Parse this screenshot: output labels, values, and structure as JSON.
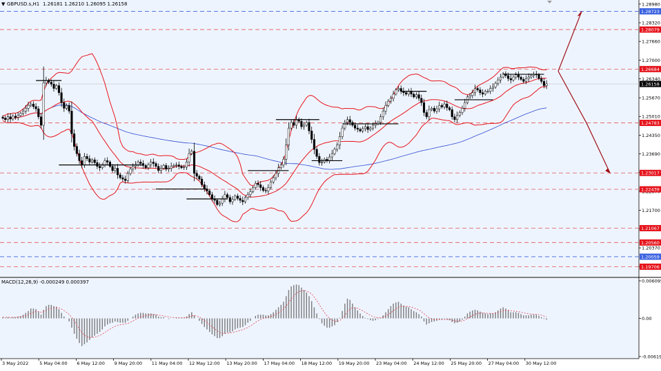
{
  "header": {
    "marker": "▼",
    "symbol": "GBPUSD.s,H1",
    "ohlc": "1.26181 1.26210 1.26095 1.26158"
  },
  "colors": {
    "background": "#eef4fe",
    "candle": "#000000",
    "bands": "#e8141a",
    "ma": "#2f4bd1",
    "level_line": "#e05555",
    "level_tag": "#e5121a",
    "price_tag": "#000000",
    "blue_line": "#3a62e0",
    "arrow": "#a01018",
    "macd_signal": "#e0404a",
    "macd_hist": "#7a7a7a"
  },
  "chart_data": [
    {
      "type": "candlestick",
      "title": "GBPUSD.s,H1",
      "ohlc": {
        "open": 1.26181,
        "high": 1.2621,
        "low": 1.26095,
        "close": 1.26158
      },
      "y_ticks": [
        "1.28980",
        "1.28320",
        "1.27660",
        "1.27000",
        "1.26340",
        "1.25670",
        "1.25010",
        "1.24350",
        "1.23690",
        "1.23030",
        "1.22370",
        "1.21700",
        "1.21040",
        "1.20370",
        "1.19710"
      ],
      "ylim": [
        1.1945,
        1.2905
      ],
      "x_ticks": [
        "3 May 2022",
        "5 May 04:00",
        "6 May 12:00",
        "9 May 20:00",
        "11 May 04:00",
        "12 May 12:00",
        "13 May 20:00",
        "17 May 04:00",
        "18 May 12:00",
        "19 May 20:00",
        "23 May 04:00",
        "24 May 12:00",
        "25 May 20:00",
        "27 May 04:00",
        "30 May 12:00"
      ],
      "indicators": [
        "Bollinger Bands",
        "Moving Average"
      ],
      "closes": [
        1.2495,
        1.249,
        1.25,
        1.2492,
        1.2502,
        1.2498,
        1.2505,
        1.2512,
        1.252,
        1.253,
        1.254,
        1.2545,
        1.2536,
        1.2528,
        1.25,
        1.247,
        1.262,
        1.2628,
        1.2622,
        1.2615,
        1.26,
        1.261,
        1.2585,
        1.255,
        1.253,
        1.254,
        1.252,
        1.244,
        1.2395,
        1.237,
        1.2345,
        1.233,
        1.236,
        1.2352,
        1.234,
        1.2348,
        1.2338,
        1.2325,
        1.232,
        1.233,
        1.2345,
        1.234,
        1.2325,
        1.231,
        1.2318,
        1.2295,
        1.2285,
        1.228,
        1.2275,
        1.23,
        1.2315,
        1.2325,
        1.233,
        1.234,
        1.2335,
        1.2328,
        1.232,
        1.233,
        1.234,
        1.2335,
        1.2325,
        1.231,
        1.2318,
        1.2328,
        1.2315,
        1.2318,
        1.2325,
        1.2328,
        1.233,
        1.2325,
        1.232,
        1.2322,
        1.234,
        1.237,
        1.2378,
        1.23,
        1.229,
        1.228,
        1.226,
        1.2245,
        1.2238,
        1.2225,
        1.221,
        1.2205,
        1.219,
        1.2195,
        1.221,
        1.2225,
        1.2215,
        1.22,
        1.2208,
        1.222,
        1.2212,
        1.2205,
        1.22,
        1.2215,
        1.2225,
        1.2235,
        1.225,
        1.2265,
        1.226,
        1.225,
        1.224,
        1.2238,
        1.225,
        1.227,
        1.2285,
        1.23,
        1.232,
        1.233,
        1.235,
        1.24,
        1.246,
        1.248,
        1.247,
        1.249,
        1.2484,
        1.2465,
        1.247,
        1.248,
        1.245,
        1.242,
        1.2385,
        1.236,
        1.2338,
        1.234,
        1.235,
        1.2345,
        1.2358,
        1.237,
        1.2385,
        1.24,
        1.243,
        1.246,
        1.248,
        1.249,
        1.248,
        1.247,
        1.246,
        1.2456,
        1.245,
        1.2458,
        1.2465,
        1.2455,
        1.246,
        1.247,
        1.2475,
        1.248,
        1.25,
        1.252,
        1.254,
        1.2555,
        1.2565,
        1.258,
        1.2595,
        1.26,
        1.259,
        1.2585,
        1.258,
        1.259,
        1.258,
        1.257,
        1.2578,
        1.2565,
        1.255,
        1.2515,
        1.25,
        1.2525,
        1.253,
        1.252,
        1.2528,
        1.254,
        1.2535,
        1.2545,
        1.2532,
        1.2525,
        1.25,
        1.249,
        1.2505,
        1.2515,
        1.253,
        1.255,
        1.257,
        1.2575,
        1.2585,
        1.26,
        1.2595,
        1.2585,
        1.258,
        1.259,
        1.259,
        1.26,
        1.2605,
        1.2618,
        1.263,
        1.264,
        1.2652,
        1.2645,
        1.2635,
        1.263,
        1.264,
        1.2648,
        1.264,
        1.2632,
        1.2625,
        1.2635,
        1.264,
        1.2645,
        1.265,
        1.2648,
        1.2635,
        1.2625,
        1.261,
        1.2616
      ]
    },
    {
      "type": "bar",
      "title": "MACD(12,26,9) -0.000249 0.000397",
      "y_ticks": [
        "0.006095",
        "0.00",
        "-0.006193"
      ],
      "ylim": [
        -0.006193,
        0.006095
      ],
      "series": [
        {
          "name": "MACD",
          "values": [
            0.0002,
            0.0001,
            0.0002,
            0.0001,
            0.0002,
            0.0002,
            0.0003,
            0.0004,
            0.0006,
            0.0009,
            0.0012,
            0.0016,
            0.0016,
            0.0015,
            0.0011,
            0.0006,
            0.0014,
            0.002,
            0.0022,
            0.0022,
            0.002,
            0.0019,
            0.0015,
            0.0009,
            0.0003,
            0.0,
            -0.0005,
            -0.0015,
            -0.0025,
            -0.0033,
            -0.004,
            -0.0045,
            -0.0042,
            -0.0039,
            -0.0035,
            -0.0031,
            -0.0028,
            -0.0025,
            -0.0022,
            -0.0018,
            -0.0013,
            -0.001,
            -0.0008,
            -0.0007,
            -0.0005,
            -0.0006,
            -0.0007,
            -0.0007,
            -0.0007,
            -0.0004,
            0.0,
            0.0003,
            0.0006,
            0.0008,
            0.0009,
            0.0009,
            0.0008,
            0.0008,
            0.0008,
            0.0007,
            0.0006,
            0.0003,
            0.0002,
            0.0002,
            0.0,
            -0.0001,
            0.0,
            0.0,
            0.0001,
            0.0001,
            0.0001,
            0.0001,
            0.0003,
            0.0007,
            0.001,
            0.0005,
            0.0,
            -0.0004,
            -0.0009,
            -0.0014,
            -0.0018,
            -0.0022,
            -0.0026,
            -0.0029,
            -0.0032,
            -0.0032,
            -0.0029,
            -0.0025,
            -0.0023,
            -0.0023,
            -0.0021,
            -0.0018,
            -0.0016,
            -0.0015,
            -0.0014,
            -0.0011,
            -0.0007,
            -0.0004,
            0.0,
            0.0004,
            0.0006,
            0.0006,
            0.0006,
            0.0005,
            0.0005,
            0.0007,
            0.001,
            0.0014,
            0.0018,
            0.0022,
            0.0027,
            0.0036,
            0.0046,
            0.0052,
            0.0054,
            0.0055,
            0.0054,
            0.005,
            0.0046,
            0.0042,
            0.0036,
            0.0028,
            0.0018,
            0.0008,
            -0.0001,
            -0.0008,
            -0.0012,
            -0.0015,
            -0.0015,
            -0.0013,
            -0.0011,
            -0.0006,
            0.0001,
            0.0012,
            0.0024,
            0.0032,
            0.003,
            0.0024,
            0.0018,
            0.0013,
            0.0008,
            0.0004,
            0.0001,
            -0.0001,
            -0.0003,
            -0.0004,
            -0.0003,
            -0.0001,
            0.0001,
            0.0005,
            0.001,
            0.0015,
            0.002,
            0.0024,
            0.0026,
            0.0027,
            0.0024,
            0.0021,
            0.0019,
            0.0018,
            0.0015,
            0.0012,
            0.001,
            0.0007,
            0.0003,
            -0.0005,
            -0.001,
            -0.0008,
            -0.0006,
            -0.0005,
            -0.0004,
            -0.0002,
            -0.0002,
            -0.0001,
            -0.0002,
            -0.0003,
            -0.0006,
            -0.0008,
            -0.0007,
            -0.0005,
            -0.0002,
            0.0003,
            0.0008,
            0.0011,
            0.0013,
            0.0014,
            0.0013,
            0.0011,
            0.0009,
            0.0008,
            0.0007,
            0.0008,
            0.0008,
            0.001,
            0.0013,
            0.0016,
            0.0018,
            0.0016,
            0.0013,
            0.001,
            0.001,
            0.001,
            0.0009,
            0.0007,
            0.0005,
            0.0005,
            0.0005,
            0.0006,
            0.0006,
            0.0006,
            0.0004,
            0.0002,
            -0.0001,
            -0.0002
          ]
        }
      ]
    }
  ],
  "levels": [
    {
      "label": "1.28723",
      "value": 1.28723
    },
    {
      "label": "1.28079",
      "value": 1.28079
    },
    {
      "label": "1.26684",
      "value": 1.26684
    },
    {
      "label": "1.24783",
      "value": 1.24783
    },
    {
      "label": "1.23017",
      "value": 1.23017
    },
    {
      "label": "1.22439",
      "value": 1.22439
    },
    {
      "label": "1.21067",
      "value": 1.21067
    },
    {
      "label": "1.20560",
      "value": 1.2056
    },
    {
      "label": "1.20059",
      "value": 1.20059
    },
    {
      "label": "1.19706",
      "value": 1.19706
    }
  ],
  "current_price": {
    "label": "1.26158",
    "value": 1.26158
  },
  "projection": {
    "start": 1.2661,
    "up_target": 1.2872,
    "down_mid": 1.2478,
    "down_target": 1.2302
  }
}
